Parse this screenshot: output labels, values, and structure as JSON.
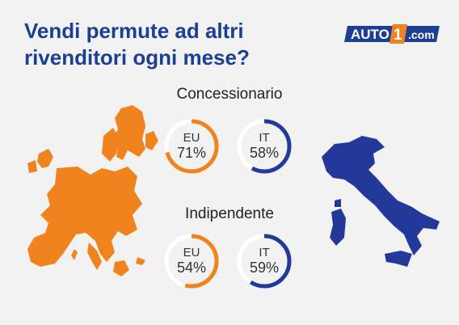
{
  "title_lines": [
    "Vendi permute ad altri",
    "rivenditori ogni mese?"
  ],
  "logo": {
    "text_auto": "AUTO",
    "text_one": "1",
    "text_com": ".com"
  },
  "colors": {
    "title": "#1c3f94",
    "eu": "#f0831e",
    "it": "#23399a",
    "ring_bg": "#ffffff"
  },
  "icons": {
    "europe": "europe-map-icon",
    "italy": "italy-map-icon"
  },
  "sections": [
    {
      "label": "Concessionario",
      "stats": [
        {
          "region": "EU",
          "value_text": "71%",
          "fraction": 0.71
        },
        {
          "region": "IT",
          "value_text": "58%",
          "fraction": 0.58
        }
      ]
    },
    {
      "label": "Indipendente",
      "stats": [
        {
          "region": "EU",
          "value_text": "54%",
          "fraction": 0.54
        },
        {
          "region": "IT",
          "value_text": "59%",
          "fraction": 0.59
        }
      ]
    }
  ]
}
